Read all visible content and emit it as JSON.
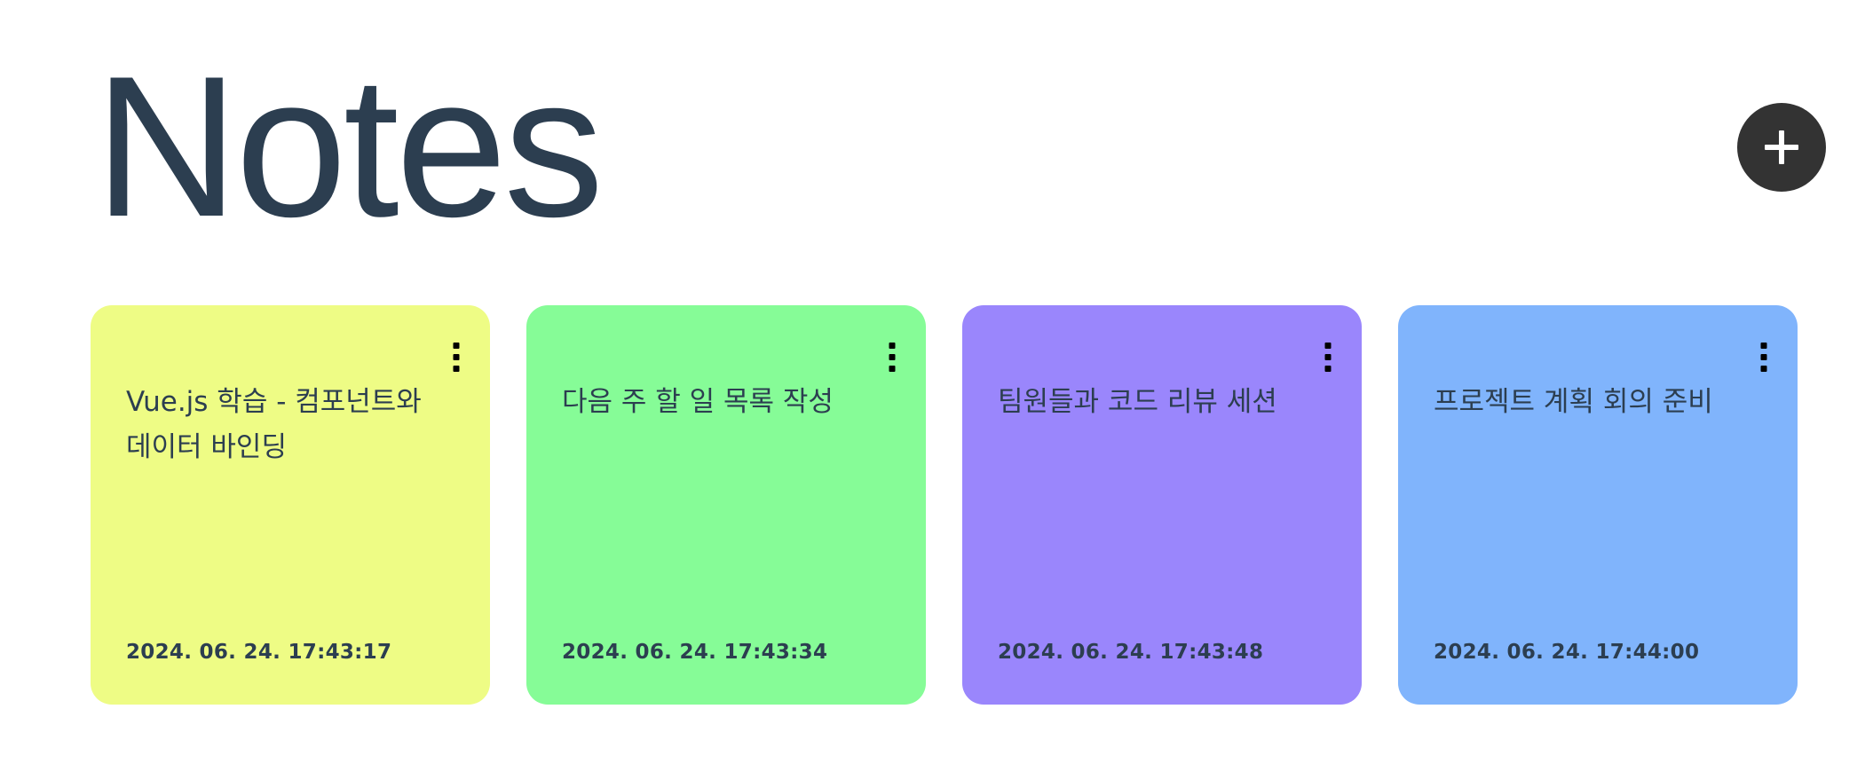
{
  "header": {
    "title": "Notes",
    "add_button_icon": "plus-icon"
  },
  "notes": [
    {
      "text": "Vue.js 학습 - 컴포넌트와 데이터 바인딩",
      "date": "2024. 06. 24. 17:43:17",
      "color": "#eefc85",
      "menu_icon": "kebab-menu-icon"
    },
    {
      "text": "다음 주 할 일 목록 작성",
      "date": "2024. 06. 24. 17:43:34",
      "color": "#86fc97",
      "menu_icon": "kebab-menu-icon"
    },
    {
      "text": "팀원들과 코드 리뷰 세션",
      "date": "2024. 06. 24. 17:43:48",
      "color": "#9a86fc",
      "menu_icon": "kebab-menu-icon"
    },
    {
      "text": "프로젝트 계획 회의 준비",
      "date": "2024. 06. 24. 17:44:00",
      "color": "#80b4fc",
      "menu_icon": "kebab-menu-icon"
    }
  ],
  "colors": {
    "text": "#2c3e50",
    "add_button_bg": "#333333"
  }
}
